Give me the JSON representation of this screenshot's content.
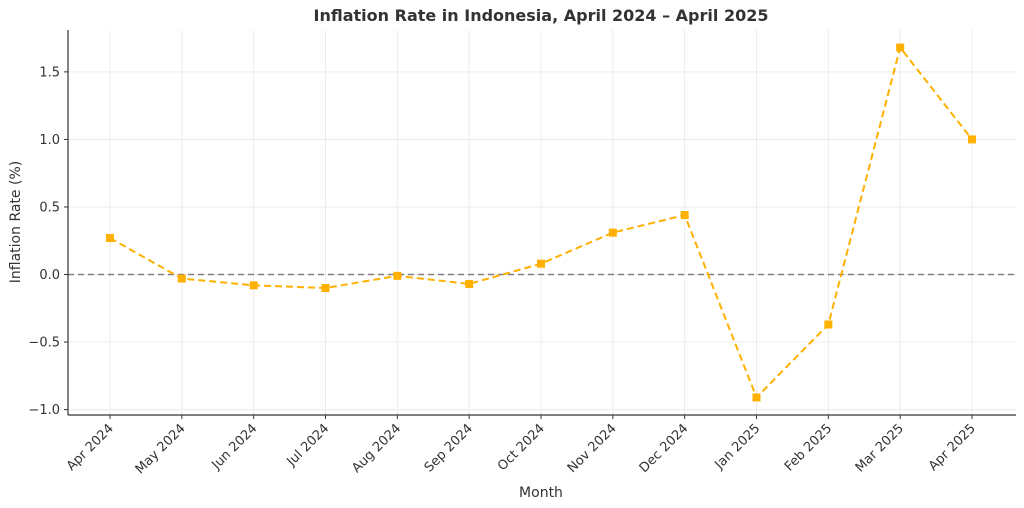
{
  "chart_data": {
    "type": "line",
    "title": "Inflation Rate in Indonesia, April 2024 – April 2025",
    "xlabel": "Month",
    "ylabel": "Inflation Rate (%)",
    "categories": [
      "Apr 2024",
      "May 2024",
      "Jun 2024",
      "Jul 2024",
      "Aug 2024",
      "Sep 2024",
      "Oct 2024",
      "Nov 2024",
      "Dec 2024",
      "Jan 2025",
      "Feb 2025",
      "Mar 2025",
      "Apr 2025"
    ],
    "series": [
      {
        "values": [
          0.27,
          -0.03,
          -0.08,
          -0.1,
          -0.01,
          -0.07,
          0.08,
          0.31,
          0.44,
          -0.91,
          -0.37,
          1.68,
          1.0
        ],
        "color": "#FFB000",
        "line_style": "dashed",
        "marker": "square"
      }
    ],
    "reference_line": {
      "y": 0,
      "color": "#808080",
      "style": "dashed"
    },
    "ylim": [
      -1.04,
      1.81
    ],
    "yticks": [
      -1.0,
      -0.5,
      0.0,
      0.5,
      1.0,
      1.5
    ],
    "ytick_labels": [
      "−1.0",
      "−0.5",
      "0.0",
      "0.5",
      "1.0",
      "1.5"
    ],
    "grid": true
  }
}
